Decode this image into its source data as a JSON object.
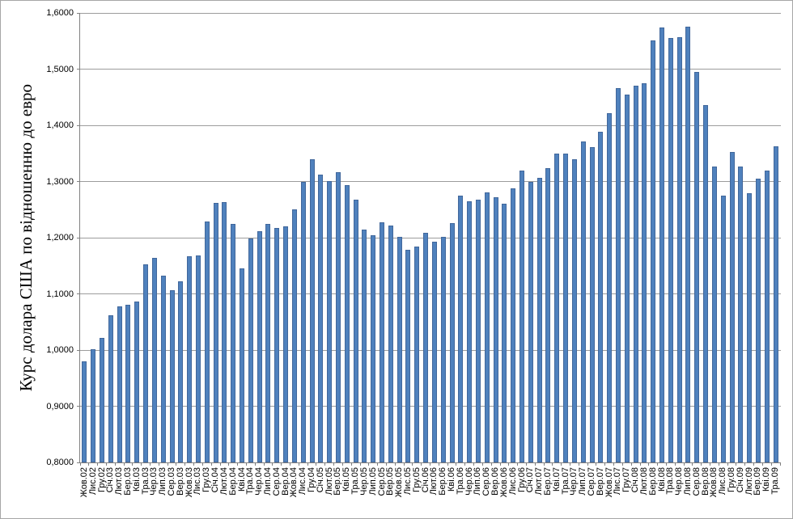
{
  "window": {
    "background": "#FFFFFF",
    "border_color": "#A6A6A6"
  },
  "chart_data": {
    "type": "bar",
    "title": "",
    "xlabel": "",
    "ylabel": "Курс долара США по відношенню до евро",
    "ylim": [
      0.8,
      1.6
    ],
    "ytick_step": 0.1,
    "ytick_labels": [
      "1,6000",
      "1,5000",
      "1,4000",
      "1,3000",
      "1,2000",
      "1,1000",
      "1,0000",
      "0,9000",
      "0,8000"
    ],
    "grid": true,
    "legend": false,
    "categories": [
      "Жов.02",
      "Лис.02",
      "Гру.02",
      "Січ.03",
      "Лют.03",
      "Бер.03",
      "Кві.03",
      "Тра.03",
      "Чер.03",
      "Лип.03",
      "Сер.03",
      "Вер.03",
      "Жов.03",
      "Лис.03",
      "Гру.03",
      "Січ.04",
      "Лют.04",
      "Бер.04",
      "Кві.04",
      "Тра.04",
      "Чер.04",
      "Лип.04",
      "Сер.04",
      "Вер.04",
      "Жов.04",
      "Лис.04",
      "Гру.04",
      "Січ.05",
      "Лют.05",
      "Бер.05",
      "Кві.05",
      "Тра.05",
      "Чер.05",
      "Лип.05",
      "Сер.05",
      "Вер.05",
      "Жов.05",
      "Лис.05",
      "Гру.05",
      "Січ.06",
      "Лют.06",
      "Бер.06",
      "Кві.06",
      "Тра.06",
      "Чер.06",
      "Лип.06",
      "Сер.06",
      "Вер.06",
      "Жов.06",
      "Лис.06",
      "Гру.06",
      "Січ.07",
      "Лют.07",
      "Бер.07",
      "Кві.07",
      "Тра.07",
      "Чер.07",
      "Лип.07",
      "Сер.07",
      "Вер.07",
      "Жов.07",
      "Лис.07",
      "Гру.07",
      "Січ.08",
      "Лют.08",
      "Бер.08",
      "Кві.08",
      "Тра.08",
      "Чер.08",
      "Лип.08",
      "Сер.08",
      "Вер.08",
      "Жов.08",
      "Лис.08",
      "Гру.08",
      "Січ.09",
      "Лют.09",
      "Бер.09",
      "Кві.09",
      "Тра.09"
    ],
    "values": [
      0.98,
      1.001,
      1.022,
      1.062,
      1.078,
      1.081,
      1.086,
      1.152,
      1.164,
      1.133,
      1.107,
      1.122,
      1.167,
      1.168,
      1.229,
      1.262,
      1.263,
      1.225,
      1.146,
      1.199,
      1.212,
      1.225,
      1.217,
      1.22,
      1.25,
      1.3,
      1.34,
      1.312,
      1.301,
      1.317,
      1.294,
      1.268,
      1.214,
      1.204,
      1.227,
      1.222,
      1.201,
      1.178,
      1.184,
      1.209,
      1.193,
      1.201,
      1.226,
      1.275,
      1.265,
      1.268,
      1.281,
      1.272,
      1.26,
      1.288,
      1.319,
      1.299,
      1.307,
      1.324,
      1.35,
      1.35,
      1.34,
      1.371,
      1.361,
      1.389,
      1.422,
      1.466,
      1.455,
      1.47,
      1.475,
      1.551,
      1.574,
      1.555,
      1.557,
      1.575,
      1.495,
      1.436,
      1.327,
      1.275,
      1.353,
      1.327,
      1.279,
      1.305,
      1.319,
      1.362
    ],
    "colors": {
      "bar": "#4F81BD",
      "bar_edge": "#41679B",
      "gridline": "#9C9C9C",
      "axis": "#808080",
      "text": "#000000"
    }
  }
}
